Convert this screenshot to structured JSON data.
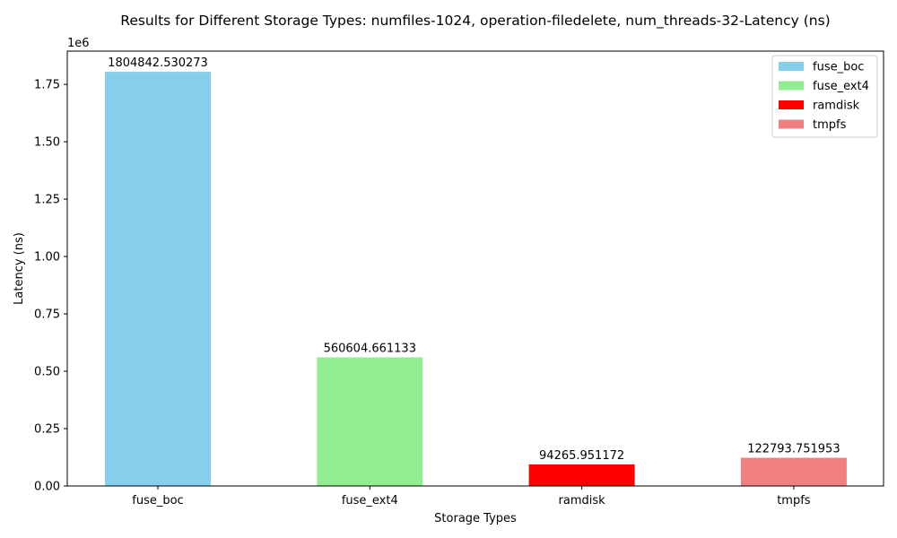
{
  "chart_data": {
    "type": "bar",
    "title": "Results for Different Storage Types: numfiles-1024, operation-filedelete, num_threads-32-Latency (ns)",
    "xlabel": "Storage Types",
    "ylabel": "Latency (ns)",
    "y_offset_label": "1e6",
    "ylim": [
      0,
      1895084.66
    ],
    "yticks": [
      0,
      250000,
      500000,
      750000,
      1000000,
      1250000,
      1500000,
      1750000
    ],
    "ytick_labels": [
      "0.00",
      "0.25",
      "0.50",
      "0.75",
      "1.00",
      "1.25",
      "1.50",
      "1.75"
    ],
    "categories": [
      "fuse_boc",
      "fuse_ext4",
      "ramdisk",
      "tmpfs"
    ],
    "values": [
      1804842.530273,
      560604.661133,
      94265.951172,
      122793.751953
    ],
    "value_labels": [
      "1804842.530273",
      "560604.661133",
      "94265.951172",
      "122793.751953"
    ],
    "colors": [
      "#87ceeb",
      "#90ee90",
      "#ff0000",
      "#f08080"
    ],
    "legend": {
      "position": "top-right",
      "entries": [
        "fuse_boc",
        "fuse_ext4",
        "ramdisk",
        "tmpfs"
      ]
    },
    "grid": false
  }
}
